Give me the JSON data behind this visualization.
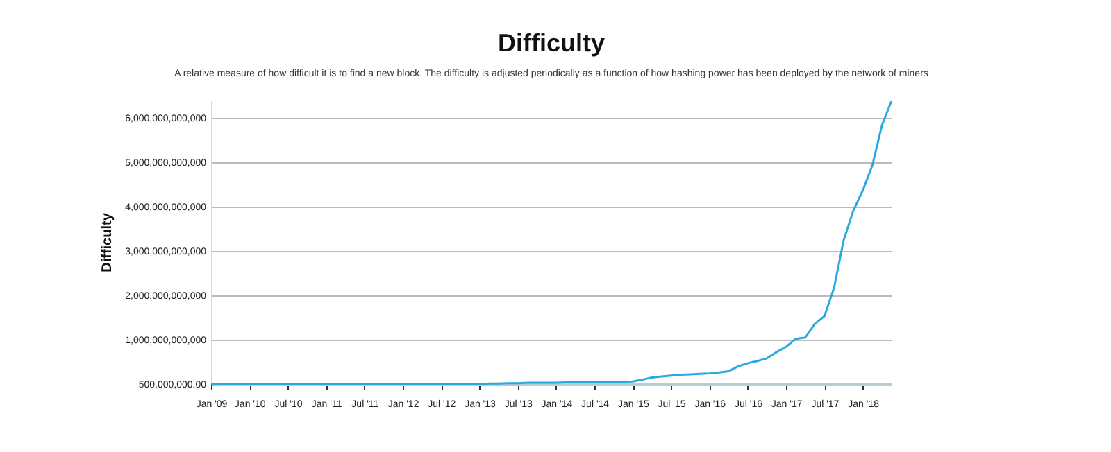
{
  "chart_data": {
    "type": "line",
    "title": "Difficulty",
    "subtitle": "A relative measure of how difficult it is to find a new block. The difficulty is adjusted periodically as a function of how hashing power has been deployed by the network of miners",
    "ylabel": "Difficulty",
    "categories": [
      "Jan '09",
      null,
      null,
      null,
      "Jan '10",
      null,
      null,
      null,
      "Jul '10",
      null,
      null,
      null,
      "Jan '11",
      null,
      null,
      null,
      "Jul '11",
      null,
      null,
      null,
      "Jan '12",
      null,
      null,
      null,
      "Jul '12",
      null,
      null,
      null,
      "Jan '13",
      null,
      null,
      null,
      "Jul '13",
      null,
      null,
      null,
      "Jan '14",
      null,
      null,
      null,
      "Jul '14",
      null,
      null,
      null,
      "Jan '15",
      null,
      null,
      null,
      "Jul '15",
      null,
      null,
      null,
      "Jan '16",
      null,
      null,
      null,
      "Jul '16",
      null,
      null,
      null,
      "Jan '17",
      null,
      null,
      null,
      "Jul '17",
      null,
      null,
      null,
      "Jan '18",
      null,
      null,
      null
    ],
    "series": [
      {
        "color": "#29a9e0",
        "values": [
          0,
          0,
          0,
          0,
          0,
          0,
          0,
          0,
          0,
          0,
          0,
          0,
          0,
          0,
          0,
          0,
          0,
          0,
          0,
          0,
          0,
          0,
          0,
          0,
          0,
          0,
          0,
          0,
          0,
          10000000000,
          10000000000,
          20000000000,
          20000000000,
          30000000000,
          30000000000,
          30000000000,
          30000000000,
          40000000000,
          40000000000,
          40000000000,
          40000000000,
          50000000000,
          50000000000,
          50000000000,
          60000000000,
          100000000000,
          150000000000,
          170000000000,
          190000000000,
          210000000000,
          220000000000,
          230000000000,
          240000000000,
          260000000000,
          290000000000,
          400000000000,
          470000000000,
          520000000000,
          580000000000,
          720000000000,
          840000000000,
          1020000000000,
          1050000000000,
          1360000000000,
          1530000000000,
          2170000000000,
          3240000000000,
          3900000000000,
          4360000000000,
          4930000000000,
          5830000000000,
          6380000000000
        ]
      }
    ],
    "ylim": [
      0,
      6400000000000
    ],
    "yticks": [
      {
        "value": 0,
        "label": "500,000,000,00"
      },
      {
        "value": 1000000000000,
        "label": "1,000,000,000,000"
      },
      {
        "value": 2000000000000,
        "label": "2,000,000,000,000"
      },
      {
        "value": 3000000000000,
        "label": "3,000,000,000,000"
      },
      {
        "value": 4000000000000,
        "label": "4,000,000,000,000"
      },
      {
        "value": 5000000000000,
        "label": "5,000,000,000,000"
      },
      {
        "value": 6000000000000,
        "label": "6,000,000,000,000"
      }
    ],
    "grid": "y",
    "marker": "none",
    "line_style": "solid"
  }
}
